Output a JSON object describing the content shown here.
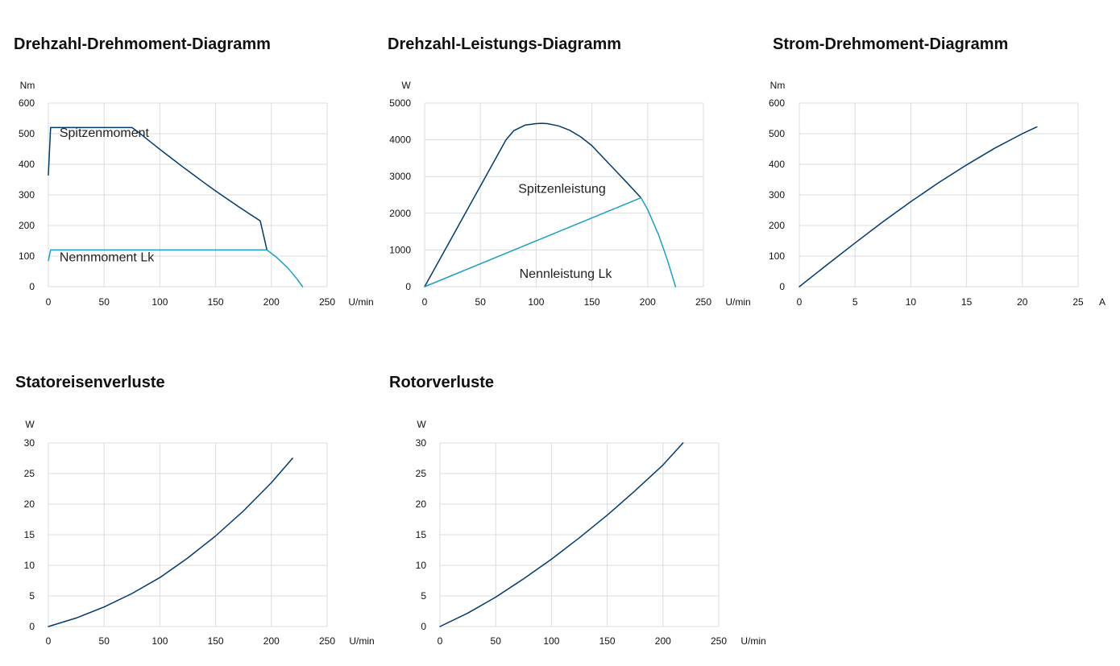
{
  "chart_data": [
    {
      "id": "c1",
      "type": "line",
      "title": "Drehzahl-Drehmoment-Diagramm",
      "xlabel": "U/min",
      "ylabel": "Nm",
      "xlim": [
        0,
        250
      ],
      "ylim": [
        0,
        600
      ],
      "xticks": [
        "0",
        "50",
        "100",
        "150",
        "200",
        "250"
      ],
      "yticks": [
        "0",
        "100",
        "200",
        "300",
        "400",
        "500",
        "600"
      ],
      "grid": true,
      "series": [
        {
          "name": "Spitzenmoment",
          "color": "#003a70",
          "x": [
            0,
            2,
            20,
            40,
            60,
            75,
            80,
            90,
            100,
            110,
            120,
            130,
            140,
            150,
            160,
            170,
            180,
            190,
            196
          ],
          "y": [
            365,
            520,
            520,
            520,
            520,
            520,
            507,
            478,
            449,
            421,
            393,
            366,
            339,
            313,
            288,
            263,
            239,
            215,
            120
          ]
        },
        {
          "name": "Nennmoment Lk",
          "color": "#1aa0c8",
          "x": [
            0,
            2,
            50,
            100,
            150,
            196,
            205,
            215,
            222,
            228
          ],
          "y": [
            85,
            120,
            120,
            120,
            120,
            120,
            95,
            60,
            30,
            0
          ]
        }
      ],
      "annotations": [
        {
          "text": "Spitzenmoment",
          "x": 10,
          "y": 490
        },
        {
          "text": "Nennmoment Lk",
          "x": 10,
          "y": 83
        }
      ]
    },
    {
      "id": "c2",
      "type": "line",
      "title": "Drehzahl-Leistungs-Diagramm",
      "xlabel": "U/min",
      "ylabel": "W",
      "xlim": [
        0,
        250
      ],
      "ylim": [
        0,
        5000
      ],
      "xticks": [
        "0",
        "50",
        "100",
        "150",
        "200",
        "250"
      ],
      "yticks": [
        "0",
        "1000",
        "2000",
        "3000",
        "4000",
        "5000"
      ],
      "grid": true,
      "series": [
        {
          "name": "Spitzenleistung",
          "color": "#003a70",
          "x": [
            0,
            73,
            80,
            90,
            100,
            105,
            110,
            120,
            130,
            140,
            150,
            160,
            170,
            180,
            194
          ],
          "y": [
            0,
            4000,
            4250,
            4400,
            4440,
            4450,
            4440,
            4380,
            4260,
            4080,
            3840,
            3520,
            3200,
            2880,
            2420
          ]
        },
        {
          "name": "Nennleistung Lk",
          "color": "#1aa0c8",
          "x": [
            0,
            194,
            200,
            210,
            218,
            225
          ],
          "y": [
            0,
            2420,
            2100,
            1400,
            700,
            0
          ]
        }
      ],
      "annotations": [
        {
          "text": "Spitzenleistung",
          "x": 84,
          "y": 2550
        },
        {
          "text": "Nennleistung Lk",
          "x": 85,
          "y": 240
        }
      ]
    },
    {
      "id": "c3",
      "type": "line",
      "title": "Strom-Drehmoment-Diagramm",
      "xlabel": "A",
      "ylabel": "Nm",
      "xlim": [
        0,
        25
      ],
      "ylim": [
        0,
        600
      ],
      "xticks": [
        "0",
        "5",
        "10",
        "15",
        "20",
        "25"
      ],
      "yticks": [
        "0",
        "100",
        "200",
        "300",
        "400",
        "500",
        "600"
      ],
      "grid": true,
      "series": [
        {
          "name": "",
          "color": "#003a70",
          "x": [
            0,
            2.5,
            5,
            7.5,
            10,
            12.5,
            15,
            17.5,
            20,
            21.3
          ],
          "y": [
            0,
            72,
            143,
            212,
            278,
            340,
            398,
            452,
            500,
            522
          ]
        }
      ],
      "annotations": []
    },
    {
      "id": "c4",
      "type": "line",
      "title": "Statoreisenverluste",
      "xlabel": "U/min",
      "ylabel": "W",
      "xlim": [
        0,
        250
      ],
      "ylim": [
        0,
        30
      ],
      "xticks": [
        "0",
        "50",
        "100",
        "150",
        "200",
        "250"
      ],
      "yticks": [
        "0",
        "5",
        "10",
        "15",
        "20",
        "25",
        "30"
      ],
      "grid": true,
      "series": [
        {
          "name": "",
          "color": "#003a70",
          "x": [
            0,
            25,
            50,
            75,
            100,
            125,
            150,
            175,
            200,
            219
          ],
          "y": [
            0,
            1.4,
            3.2,
            5.4,
            8.0,
            11.2,
            14.8,
            18.9,
            23.5,
            27.5
          ]
        }
      ],
      "annotations": []
    },
    {
      "id": "c5",
      "type": "line",
      "title": "Rotorverluste",
      "xlabel": "U/min",
      "ylabel": "W",
      "xlim": [
        0,
        250
      ],
      "ylim": [
        0,
        30
      ],
      "xticks": [
        "0",
        "50",
        "100",
        "150",
        "200",
        "250"
      ],
      "yticks": [
        "0",
        "5",
        "10",
        "15",
        "20",
        "25",
        "30"
      ],
      "grid": true,
      "series": [
        {
          "name": "",
          "color": "#003a70",
          "x": [
            0,
            25,
            50,
            75,
            100,
            125,
            150,
            175,
            200,
            218
          ],
          "y": [
            0,
            2.2,
            4.8,
            7.8,
            11.0,
            14.5,
            18.2,
            22.2,
            26.4,
            30
          ]
        }
      ],
      "annotations": []
    }
  ]
}
